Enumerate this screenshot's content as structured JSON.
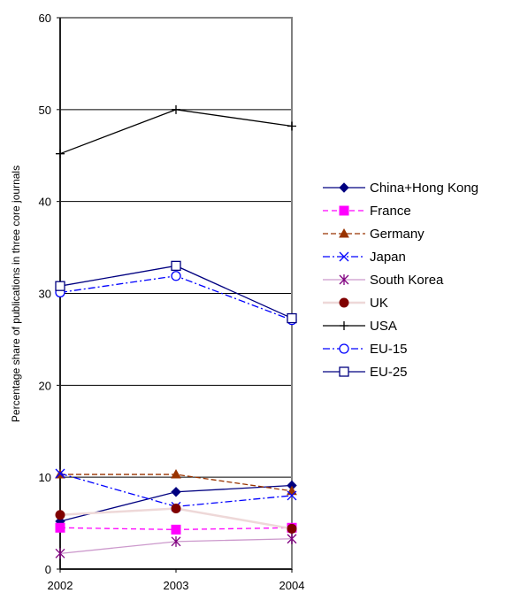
{
  "chart_data": {
    "type": "line",
    "title": "",
    "xlabel": "",
    "ylabel": "Percentage share of publications in three core journals",
    "x": [
      "2002",
      "2003",
      "2004"
    ],
    "ylim": [
      0,
      60
    ],
    "yticks": [
      0,
      10,
      20,
      30,
      40,
      50,
      60
    ],
    "grid": "horizontal",
    "legend_position": "right",
    "series": [
      {
        "name": "China+Hong Kong",
        "values": [
          5.2,
          8.4,
          9.1
        ],
        "color": "#000080",
        "dash": "",
        "marker": "diamond"
      },
      {
        "name": "France",
        "values": [
          4.5,
          4.3,
          4.5
        ],
        "color": "#FF00FF",
        "dash": "6,4",
        "marker": "square"
      },
      {
        "name": "Germany",
        "values": [
          10.3,
          10.3,
          8.5
        ],
        "color": "#993300",
        "dash": "6,3",
        "marker": "triangle"
      },
      {
        "name": "Japan",
        "values": [
          10.4,
          6.8,
          8.0
        ],
        "color": "#0000FF",
        "dash": "8,3,2,3",
        "marker": "x"
      },
      {
        "name": "South Korea",
        "values": [
          1.7,
          3.0,
          3.3
        ],
        "color": "#CC99CC",
        "dash": "",
        "marker": "star"
      },
      {
        "name": "UK",
        "values": [
          5.9,
          6.6,
          4.4
        ],
        "color": "#EED8D8",
        "dash": "",
        "marker": "circle"
      },
      {
        "name": "USA",
        "values": [
          45.2,
          50.0,
          48.2
        ],
        "color": "#000000",
        "dash": "",
        "marker": "plus"
      },
      {
        "name": "EU-15",
        "values": [
          30.1,
          31.9,
          27.1
        ],
        "color": "#0000FF",
        "dash": "8,3,2,3",
        "marker": "open-circle"
      },
      {
        "name": "EU-25",
        "values": [
          30.8,
          33.0,
          27.3
        ],
        "color": "#000080",
        "dash": "",
        "marker": "open-square"
      }
    ]
  }
}
